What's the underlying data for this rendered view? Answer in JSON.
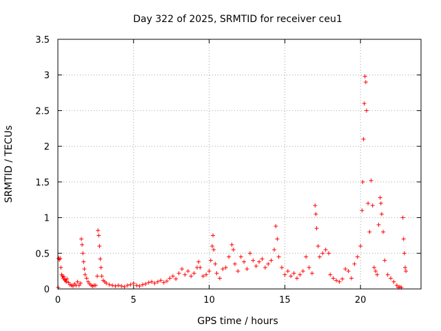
{
  "chart_data": {
    "type": "scatter",
    "title": "Day 322 of 2025, SRMTID for receiver ceu1",
    "xlabel": "GPS time / hours",
    "ylabel": "SRMTID / TECUs",
    "xlim": [
      0,
      24
    ],
    "ylim": [
      0,
      3.5
    ],
    "xticks": [
      0,
      5,
      10,
      15,
      20
    ],
    "yticks": [
      0,
      0.5,
      1,
      1.5,
      2,
      2.5,
      3,
      3.5
    ],
    "xtick_labels": [
      "0",
      "5",
      "10",
      "15",
      "20"
    ],
    "ytick_labels": [
      "0",
      "0.5",
      "1",
      "1.5",
      "2",
      "2.5",
      "3",
      "3.5"
    ],
    "grid": true,
    "marker": "+",
    "series": [
      {
        "name": "SRMTID",
        "color": "#ff0000",
        "points": [
          [
            0.02,
            0.02
          ],
          [
            0.05,
            0.43
          ],
          [
            0.1,
            0.41
          ],
          [
            0.15,
            0.43
          ],
          [
            0.2,
            0.3
          ],
          [
            0.25,
            0.2
          ],
          [
            0.3,
            0.18
          ],
          [
            0.35,
            0.15
          ],
          [
            0.4,
            0.17
          ],
          [
            0.45,
            0.13
          ],
          [
            0.5,
            0.12
          ],
          [
            0.55,
            0.1
          ],
          [
            0.6,
            0.14
          ],
          [
            0.7,
            0.09
          ],
          [
            0.8,
            0.06
          ],
          [
            0.9,
            0.05
          ],
          [
            1.0,
            0.04
          ],
          [
            1.1,
            0.07
          ],
          [
            1.2,
            0.05
          ],
          [
            1.3,
            0.1
          ],
          [
            1.4,
            0.05
          ],
          [
            1.5,
            0.08
          ],
          [
            1.55,
            0.7
          ],
          [
            1.6,
            0.62
          ],
          [
            1.65,
            0.5
          ],
          [
            1.7,
            0.38
          ],
          [
            1.75,
            0.28
          ],
          [
            1.8,
            0.2
          ],
          [
            1.9,
            0.15
          ],
          [
            2.0,
            0.1
          ],
          [
            2.1,
            0.07
          ],
          [
            2.2,
            0.05
          ],
          [
            2.3,
            0.04
          ],
          [
            2.4,
            0.05
          ],
          [
            2.5,
            0.05
          ],
          [
            2.6,
            0.18
          ],
          [
            2.65,
            0.82
          ],
          [
            2.7,
            0.75
          ],
          [
            2.75,
            0.6
          ],
          [
            2.8,
            0.42
          ],
          [
            2.85,
            0.3
          ],
          [
            2.9,
            0.18
          ],
          [
            3.0,
            0.12
          ],
          [
            3.1,
            0.1
          ],
          [
            3.2,
            0.08
          ],
          [
            3.4,
            0.06
          ],
          [
            3.6,
            0.05
          ],
          [
            3.8,
            0.04
          ],
          [
            4.0,
            0.05
          ],
          [
            4.2,
            0.04
          ],
          [
            4.4,
            0.03
          ],
          [
            4.6,
            0.05
          ],
          [
            4.8,
            0.06
          ],
          [
            5.0,
            0.08
          ],
          [
            5.2,
            0.05
          ],
          [
            5.4,
            0.04
          ],
          [
            5.6,
            0.06
          ],
          [
            5.8,
            0.07
          ],
          [
            6.0,
            0.09
          ],
          [
            6.2,
            0.1
          ],
          [
            6.4,
            0.08
          ],
          [
            6.6,
            0.1
          ],
          [
            6.8,
            0.12
          ],
          [
            7.0,
            0.09
          ],
          [
            7.2,
            0.11
          ],
          [
            7.4,
            0.15
          ],
          [
            7.6,
            0.18
          ],
          [
            7.8,
            0.14
          ],
          [
            8.0,
            0.22
          ],
          [
            8.2,
            0.28
          ],
          [
            8.4,
            0.2
          ],
          [
            8.6,
            0.25
          ],
          [
            8.8,
            0.18
          ],
          [
            9.0,
            0.22
          ],
          [
            9.2,
            0.3
          ],
          [
            9.3,
            0.38
          ],
          [
            9.4,
            0.3
          ],
          [
            9.6,
            0.18
          ],
          [
            9.8,
            0.2
          ],
          [
            10.0,
            0.25
          ],
          [
            10.1,
            0.4
          ],
          [
            10.2,
            0.6
          ],
          [
            10.25,
            0.75
          ],
          [
            10.3,
            0.55
          ],
          [
            10.4,
            0.35
          ],
          [
            10.5,
            0.22
          ],
          [
            10.7,
            0.15
          ],
          [
            10.9,
            0.28
          ],
          [
            11.1,
            0.3
          ],
          [
            11.3,
            0.45
          ],
          [
            11.5,
            0.62
          ],
          [
            11.6,
            0.55
          ],
          [
            11.7,
            0.35
          ],
          [
            11.9,
            0.25
          ],
          [
            12.1,
            0.45
          ],
          [
            12.3,
            0.38
          ],
          [
            12.5,
            0.28
          ],
          [
            12.7,
            0.5
          ],
          [
            12.9,
            0.4
          ],
          [
            13.1,
            0.32
          ],
          [
            13.3,
            0.38
          ],
          [
            13.5,
            0.42
          ],
          [
            13.7,
            0.3
          ],
          [
            13.9,
            0.35
          ],
          [
            14.1,
            0.4
          ],
          [
            14.3,
            0.55
          ],
          [
            14.4,
            0.88
          ],
          [
            14.5,
            0.7
          ],
          [
            14.6,
            0.45
          ],
          [
            14.8,
            0.3
          ],
          [
            15.0,
            0.2
          ],
          [
            15.2,
            0.25
          ],
          [
            15.4,
            0.18
          ],
          [
            15.6,
            0.22
          ],
          [
            15.8,
            0.15
          ],
          [
            16.0,
            0.2
          ],
          [
            16.2,
            0.25
          ],
          [
            16.4,
            0.45
          ],
          [
            16.6,
            0.3
          ],
          [
            16.8,
            0.22
          ],
          [
            17.0,
            1.17
          ],
          [
            17.05,
            1.05
          ],
          [
            17.1,
            0.85
          ],
          [
            17.2,
            0.6
          ],
          [
            17.3,
            0.45
          ],
          [
            17.5,
            0.5
          ],
          [
            17.7,
            0.55
          ],
          [
            17.9,
            0.5
          ],
          [
            18.0,
            0.2
          ],
          [
            18.2,
            0.15
          ],
          [
            18.4,
            0.12
          ],
          [
            18.6,
            0.1
          ],
          [
            18.8,
            0.14
          ],
          [
            19.0,
            0.28
          ],
          [
            19.2,
            0.25
          ],
          [
            19.4,
            0.15
          ],
          [
            19.6,
            0.35
          ],
          [
            19.8,
            0.45
          ],
          [
            20.0,
            0.6
          ],
          [
            20.1,
            1.1
          ],
          [
            20.15,
            1.5
          ],
          [
            20.2,
            2.1
          ],
          [
            20.25,
            2.6
          ],
          [
            20.3,
            2.98
          ],
          [
            20.35,
            2.9
          ],
          [
            20.4,
            2.5
          ],
          [
            20.5,
            1.2
          ],
          [
            20.6,
            0.8
          ],
          [
            20.7,
            1.52
          ],
          [
            20.8,
            1.17
          ],
          [
            20.9,
            0.3
          ],
          [
            21.0,
            0.25
          ],
          [
            21.1,
            0.2
          ],
          [
            21.2,
            0.9
          ],
          [
            21.3,
            1.28
          ],
          [
            21.35,
            1.2
          ],
          [
            21.4,
            1.05
          ],
          [
            21.5,
            0.8
          ],
          [
            21.6,
            0.4
          ],
          [
            21.8,
            0.2
          ],
          [
            22.0,
            0.15
          ],
          [
            22.2,
            0.1
          ],
          [
            22.4,
            0.05
          ],
          [
            22.5,
            0.02
          ],
          [
            22.6,
            0.03
          ],
          [
            22.7,
            0.02
          ],
          [
            22.8,
            1.0
          ],
          [
            22.85,
            0.7
          ],
          [
            22.9,
            0.5
          ],
          [
            22.95,
            0.3
          ],
          [
            23.0,
            0.25
          ]
        ]
      }
    ]
  }
}
